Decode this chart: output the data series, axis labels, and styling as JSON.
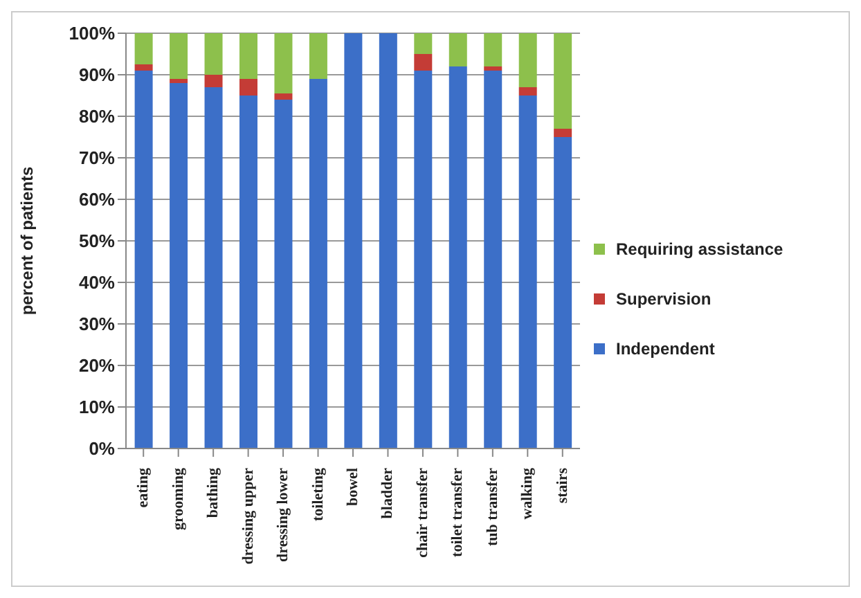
{
  "chart_data": {
    "type": "bar",
    "stacked": true,
    "ylabel": "percent of patients",
    "categories": [
      "eating",
      "grooming",
      "bathing",
      "dressing upper",
      "dressing lower",
      "toileting",
      "bowel",
      "bladder",
      "chair transfer",
      "toilet transfer",
      "tub transfer",
      "walking",
      "stairs"
    ],
    "series": [
      {
        "name": "Independent",
        "color": "#3c6fc8",
        "values": [
          91,
          88,
          87,
          85,
          84,
          89,
          100,
          100,
          91,
          92,
          91,
          85,
          75
        ]
      },
      {
        "name": "Supervision",
        "color": "#c43c36",
        "values": [
          1.5,
          1,
          3,
          4,
          1.5,
          0,
          0,
          0,
          4,
          0,
          1,
          2,
          2
        ]
      },
      {
        "name": "Requiring assistance",
        "color": "#8dc04c",
        "values": [
          7.5,
          11,
          10,
          11,
          14.5,
          11,
          0,
          0,
          5,
          8,
          8,
          13,
          23
        ]
      }
    ],
    "ylim": [
      0,
      100
    ],
    "yticks": [
      {
        "value": 0,
        "label": "0%"
      },
      {
        "value": 10,
        "label": "10%"
      },
      {
        "value": 20,
        "label": "20%"
      },
      {
        "value": 30,
        "label": "30%"
      },
      {
        "value": 40,
        "label": "40%"
      },
      {
        "value": 50,
        "label": "50%"
      },
      {
        "value": 60,
        "label": "60%"
      },
      {
        "value": 70,
        "label": "70%"
      },
      {
        "value": 80,
        "label": "80%"
      },
      {
        "value": 90,
        "label": "90%"
      },
      {
        "value": 100,
        "label": "100%"
      }
    ],
    "grid": "y",
    "legend": "right"
  }
}
